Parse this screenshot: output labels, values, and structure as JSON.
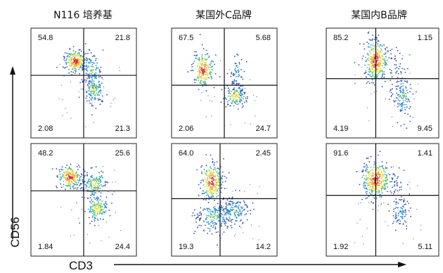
{
  "chart_data": {
    "type": "scatter",
    "figure_kind": "flow cytometry density dot plots (quadrant gates)",
    "x_axis_label": "CD3",
    "y_axis_label": "CD56",
    "columns": [
      "N116 培养基",
      "某国外C品牌",
      "某国内B品牌"
    ],
    "panels": [
      {
        "column": 0,
        "row": 0,
        "quadrants": {
          "upper_left": "54.8",
          "upper_right": "21.8",
          "lower_left": "2.08",
          "lower_right": "21.3"
        }
      },
      {
        "column": 1,
        "row": 0,
        "quadrants": {
          "upper_left": "67.5",
          "upper_right": "5.68",
          "lower_left": "2.06",
          "lower_right": "24.7"
        }
      },
      {
        "column": 2,
        "row": 0,
        "quadrants": {
          "upper_left": "85.2",
          "upper_right": "1.15",
          "lower_left": "4.19",
          "lower_right": "9.45"
        }
      },
      {
        "column": 0,
        "row": 1,
        "quadrants": {
          "upper_left": "48.2",
          "upper_right": "25.6",
          "lower_left": "1.84",
          "lower_right": "24.4"
        }
      },
      {
        "column": 1,
        "row": 1,
        "quadrants": {
          "upper_left": "64.0",
          "upper_right": "2.45",
          "lower_left": "19.3",
          "lower_right": "14.2"
        }
      },
      {
        "column": 2,
        "row": 1,
        "quadrants": {
          "upper_left": "91.6",
          "upper_right": "1.41",
          "lower_left": "1.92",
          "lower_right": "5.11"
        }
      }
    ],
    "grid": false,
    "legend": "none"
  }
}
